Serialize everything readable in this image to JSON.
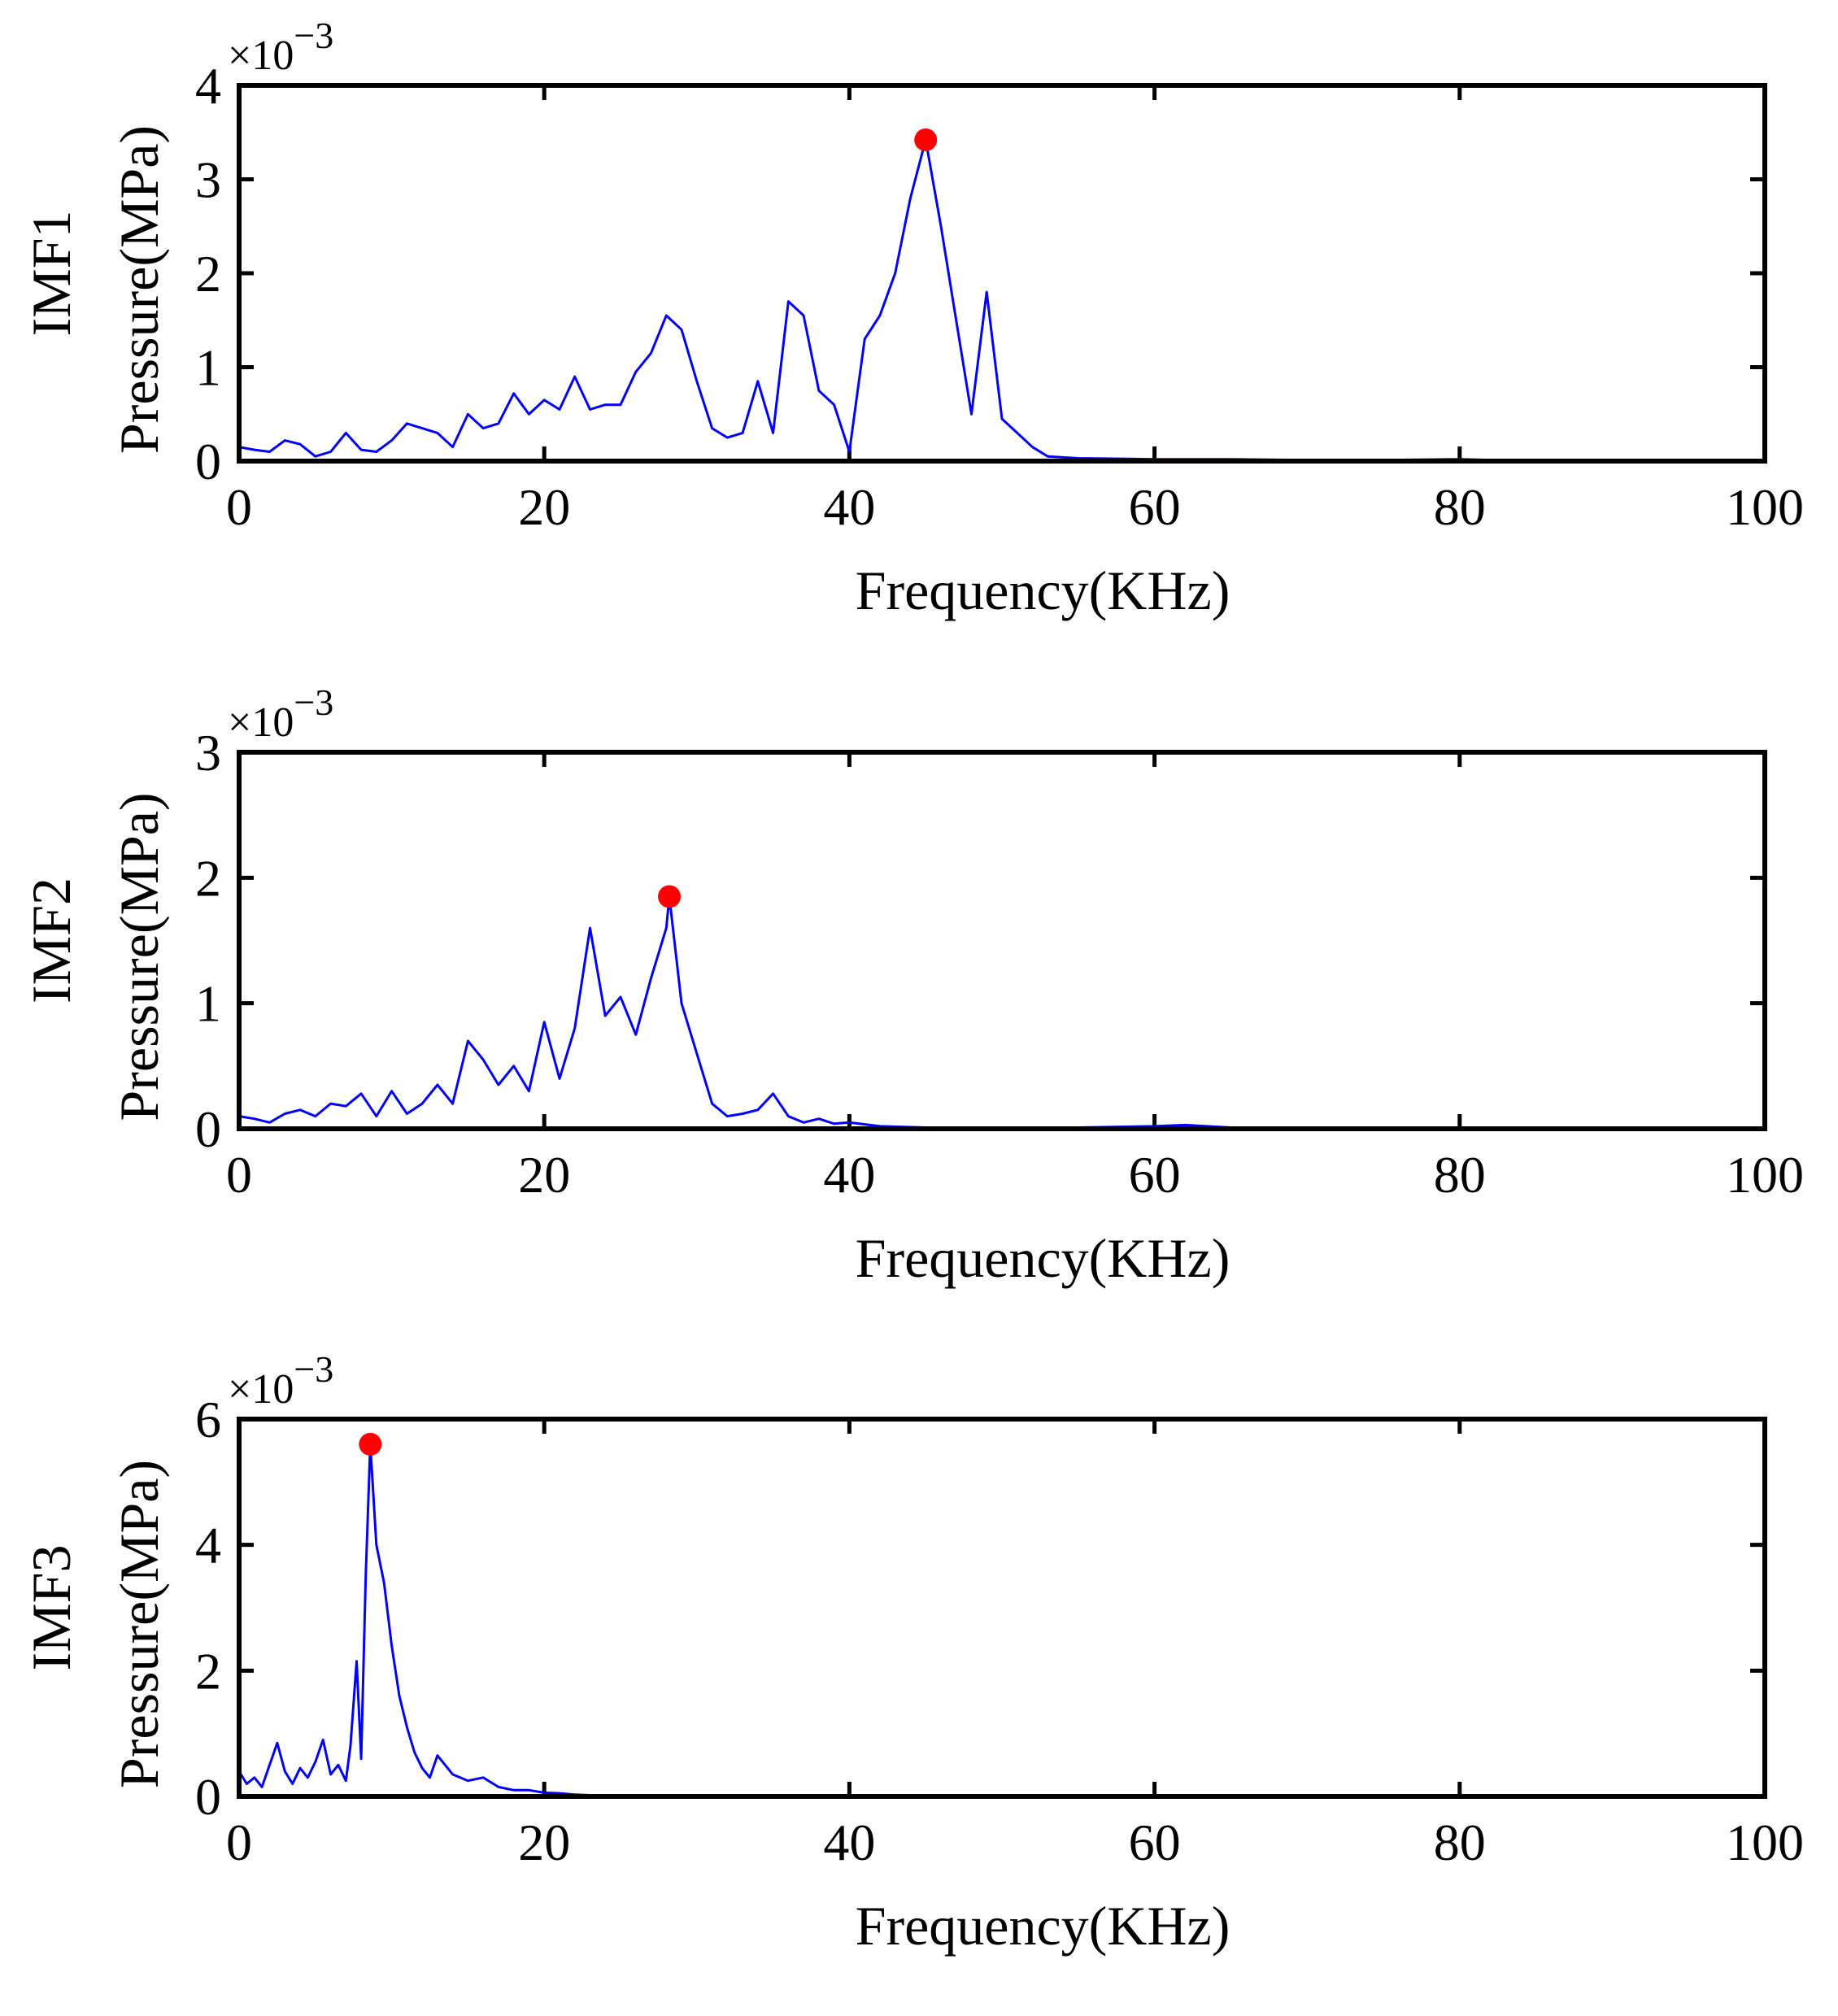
{
  "chart_data": [
    {
      "type": "line",
      "ylabel_prefix": "IMF1",
      "ylabel": "Pressure(MPa)",
      "xlabel": "Frequency(KHz)",
      "multiplier_base": "×10",
      "multiplier_exp": "−3",
      "xlim": [
        0,
        100
      ],
      "ylim": [
        0,
        4
      ],
      "xticks": [
        "0",
        "20",
        "40",
        "60",
        "80",
        "100"
      ],
      "yticks": [
        "0",
        "1",
        "2",
        "3",
        "4"
      ],
      "series_color": "#0000ff",
      "peak_color": "#ff0000",
      "peak": {
        "x": 45,
        "y": 3.42
      },
      "x": [
        0,
        1,
        2,
        3,
        4,
        5,
        6,
        7,
        8,
        9,
        10,
        11,
        12,
        13,
        14,
        15,
        16,
        17,
        18,
        19,
        20,
        21,
        22,
        23,
        24,
        25,
        26,
        27,
        28,
        29,
        30,
        31,
        32,
        33,
        34,
        35,
        36,
        37,
        38,
        39,
        40,
        41,
        42,
        43,
        44,
        45,
        46,
        47,
        48,
        49,
        50,
        51,
        52,
        53,
        55,
        60,
        65,
        70,
        75,
        80,
        85,
        90,
        95,
        100
      ],
      "y": [
        0.15,
        0.12,
        0.1,
        0.22,
        0.18,
        0.05,
        0.1,
        0.3,
        0.12,
        0.1,
        0.22,
        0.4,
        0.35,
        0.3,
        0.15,
        0.5,
        0.35,
        0.4,
        0.72,
        0.5,
        0.65,
        0.55,
        0.9,
        0.55,
        0.6,
        0.6,
        0.95,
        1.15,
        1.55,
        1.4,
        0.85,
        0.35,
        0.25,
        0.3,
        0.85,
        0.3,
        1.7,
        1.55,
        0.75,
        0.6,
        0.1,
        1.3,
        1.55,
        2.0,
        2.8,
        3.42,
        2.5,
        1.5,
        0.5,
        1.8,
        0.45,
        0.3,
        0.15,
        0.05,
        0.03,
        0.02,
        0.02,
        0.01,
        0.01,
        0.02,
        0.0,
        0.0,
        0.0,
        0.0
      ]
    },
    {
      "type": "line",
      "ylabel_prefix": "IMF2",
      "ylabel": "Pressure(MPa)",
      "xlabel": "Frequency(KHz)",
      "multiplier_base": "×10",
      "multiplier_exp": "−3",
      "xlim": [
        0,
        100
      ],
      "ylim": [
        0,
        3
      ],
      "xticks": [
        "0",
        "20",
        "40",
        "60",
        "80",
        "100"
      ],
      "yticks": [
        "0",
        "1",
        "2",
        "3"
      ],
      "series_color": "#0000ff",
      "peak_color": "#ff0000",
      "peak": {
        "x": 28.2,
        "y": 1.85
      },
      "x": [
        0,
        1,
        2,
        3,
        4,
        5,
        6,
        7,
        8,
        9,
        10,
        11,
        12,
        13,
        14,
        15,
        16,
        17,
        18,
        19,
        20,
        21,
        22,
        23,
        24,
        25,
        26,
        27,
        28,
        28.2,
        29,
        30,
        31,
        32,
        33,
        34,
        35,
        36,
        37,
        38,
        39,
        40,
        42,
        45,
        50,
        55,
        60,
        62,
        65,
        70,
        80,
        90,
        100
      ],
      "y": [
        0.1,
        0.08,
        0.05,
        0.12,
        0.15,
        0.1,
        0.2,
        0.18,
        0.28,
        0.1,
        0.3,
        0.12,
        0.2,
        0.35,
        0.2,
        0.7,
        0.55,
        0.35,
        0.5,
        0.3,
        0.85,
        0.4,
        0.8,
        1.6,
        0.9,
        1.05,
        0.75,
        1.2,
        1.6,
        1.85,
        1.0,
        0.6,
        0.2,
        0.1,
        0.12,
        0.15,
        0.28,
        0.1,
        0.05,
        0.08,
        0.04,
        0.05,
        0.02,
        0.01,
        0.01,
        0.01,
        0.02,
        0.03,
        0.01,
        0.0,
        0.0,
        0.0,
        0.0
      ]
    },
    {
      "type": "line",
      "ylabel_prefix": "IMF3",
      "ylabel": "Pressure(MPa)",
      "xlabel": "Frequency(KHz)",
      "multiplier_base": "×10",
      "multiplier_exp": "−3",
      "xlim": [
        0,
        100
      ],
      "ylim": [
        0,
        6
      ],
      "xticks": [
        "0",
        "20",
        "40",
        "60",
        "80",
        "100"
      ],
      "yticks": [
        "0",
        "2",
        "4",
        "6"
      ],
      "series_color": "#0000ff",
      "peak_color": "#ff0000",
      "peak": {
        "x": 8.6,
        "y": 5.6
      },
      "x": [
        0,
        0.5,
        1,
        1.5,
        2,
        2.5,
        3,
        3.5,
        4,
        4.5,
        5,
        5.5,
        6,
        6.5,
        7,
        7.3,
        7.7,
        8.0,
        8.3,
        8.6,
        9,
        9.5,
        10,
        10.5,
        11,
        11.5,
        12,
        12.5,
        13,
        13.5,
        14,
        15,
        16,
        17,
        18,
        19,
        20,
        21,
        22,
        23,
        24,
        25,
        30,
        40,
        60,
        80,
        100
      ],
      "y": [
        0.4,
        0.2,
        0.3,
        0.15,
        0.5,
        0.85,
        0.4,
        0.2,
        0.45,
        0.3,
        0.55,
        0.9,
        0.35,
        0.5,
        0.25,
        0.8,
        2.15,
        0.6,
        3.5,
        5.6,
        4.0,
        3.4,
        2.4,
        1.6,
        1.1,
        0.7,
        0.45,
        0.3,
        0.65,
        0.5,
        0.35,
        0.25,
        0.3,
        0.15,
        0.1,
        0.1,
        0.06,
        0.05,
        0.03,
        0.02,
        0.01,
        0.0,
        0.0,
        0.0,
        0.0,
        0.0,
        0.0
      ]
    }
  ]
}
